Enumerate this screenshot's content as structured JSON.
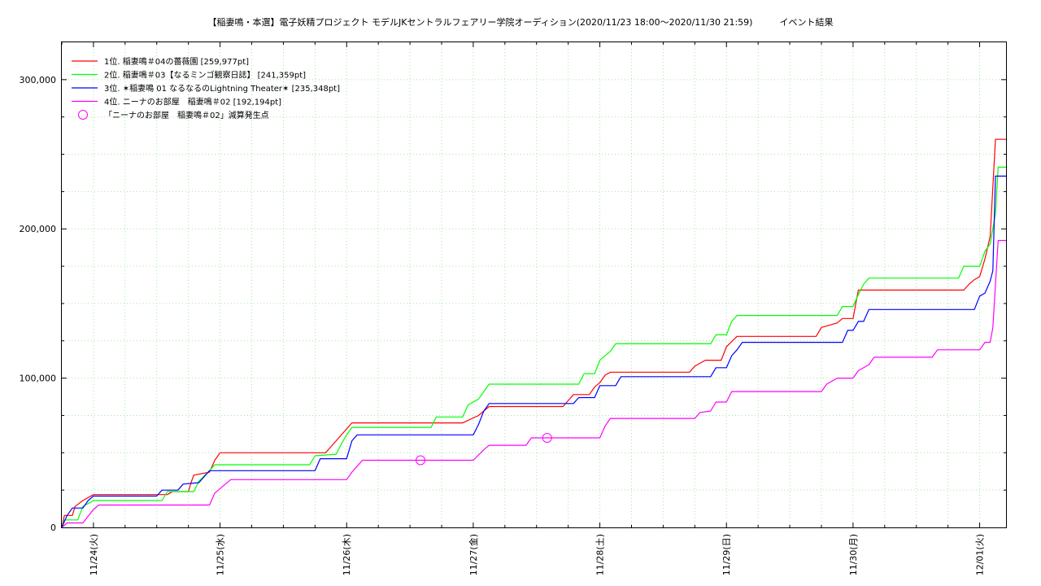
{
  "chart_data": {
    "type": "line",
    "title": "【稲妻鳴・本選】電子妖精プロジェクト モデルJKセントラルフェアリー学院オーディション(2020/11/23 18:00〜2020/11/30 21:59)　　　イベント結果",
    "xlabel": "",
    "ylabel": "",
    "x_ticks": [
      "11/24(火)",
      "11/25(水)",
      "11/26(木)",
      "11/27(金)",
      "11/28(土)",
      "11/29(日)",
      "11/30(月)",
      "12/01(火)"
    ],
    "xlim": [
      "2020-11-23 18:00",
      "2020-12-01 05:00"
    ],
    "ylim": [
      0,
      325000
    ],
    "y_ticks": [
      "0",
      "100,000",
      "200,000",
      "300,000"
    ],
    "y_tick_values": [
      0,
      100000,
      200000,
      300000
    ],
    "grid": true,
    "legend_position": "top-left",
    "series": [
      {
        "name": "1位. 稲妻鳴＃04の薔薇園 [259,977pt]",
        "color": "#ff0000",
        "points": [
          [
            "2020-11-23 18:00",
            0
          ],
          [
            "2020-11-23 18:30",
            8000
          ],
          [
            "2020-11-23 20:00",
            8000
          ],
          [
            "2020-11-23 20:30",
            14000
          ],
          [
            "2020-11-23 22:00",
            18000
          ],
          [
            "2020-11-24 00:00",
            22000
          ],
          [
            "2020-11-24 14:00",
            22000
          ],
          [
            "2020-11-24 15:00",
            24000
          ],
          [
            "2020-11-24 18:00",
            24000
          ],
          [
            "2020-11-24 18:30",
            30000
          ],
          [
            "2020-11-24 19:00",
            35000
          ],
          [
            "2020-11-24 22:00",
            37000
          ],
          [
            "2020-11-24 23:00",
            45000
          ],
          [
            "2020-11-25 00:00",
            50000
          ],
          [
            "2020-11-25 20:00",
            50000
          ],
          [
            "2020-11-25 21:00",
            54000
          ],
          [
            "2020-11-26 00:00",
            66000
          ],
          [
            "2020-11-26 01:00",
            70000
          ],
          [
            "2020-11-26 22:00",
            70000
          ],
          [
            "2020-11-27 01:00",
            75000
          ],
          [
            "2020-11-27 03:00",
            81000
          ],
          [
            "2020-11-27 17:00",
            81000
          ],
          [
            "2020-11-27 18:00",
            85000
          ],
          [
            "2020-11-27 19:00",
            89000
          ],
          [
            "2020-11-27 22:00",
            89000
          ],
          [
            "2020-11-27 23:00",
            94000
          ],
          [
            "2020-11-28 00:00",
            97000
          ],
          [
            "2020-11-28 01:00",
            102000
          ],
          [
            "2020-11-28 02:00",
            104000
          ],
          [
            "2020-11-28 17:00",
            104000
          ],
          [
            "2020-11-28 18:00",
            108000
          ],
          [
            "2020-11-28 20:00",
            112000
          ],
          [
            "2020-11-28 23:00",
            112000
          ],
          [
            "2020-11-29 00:00",
            121000
          ],
          [
            "2020-11-29 02:00",
            128000
          ],
          [
            "2020-11-29 17:00",
            128000
          ],
          [
            "2020-11-29 18:00",
            134000
          ],
          [
            "2020-11-29 21:00",
            137000
          ],
          [
            "2020-11-29 22:00",
            140000
          ],
          [
            "2020-11-30 00:00",
            140000
          ],
          [
            "2020-11-30 01:00",
            159000
          ],
          [
            "2020-11-30 21:00",
            159000
          ],
          [
            "2020-11-30 22:00",
            163000
          ],
          [
            "2020-11-30 23:00",
            166000
          ],
          [
            "2020-12-01 00:00",
            168000
          ],
          [
            "2020-12-01 01:00",
            180000
          ],
          [
            "2020-12-01 02:00",
            195000
          ],
          [
            "2020-12-01 03:00",
            259977
          ],
          [
            "2020-12-01 05:00",
            259977
          ]
        ]
      },
      {
        "name": "2位. 稲妻鳴＃03【なるミンゴ観察日誌】 [241,359pt]",
        "color": "#00ff00",
        "points": [
          [
            "2020-11-23 18:00",
            0
          ],
          [
            "2020-11-23 18:30",
            5000
          ],
          [
            "2020-11-23 21:00",
            5000
          ],
          [
            "2020-11-23 22:00",
            14000
          ],
          [
            "2020-11-24 00:00",
            18000
          ],
          [
            "2020-11-24 13:00",
            18000
          ],
          [
            "2020-11-24 14:00",
            24000
          ],
          [
            "2020-11-24 19:00",
            24000
          ],
          [
            "2020-11-24 20:00",
            31000
          ],
          [
            "2020-11-24 22:00",
            38000
          ],
          [
            "2020-11-24 23:00",
            42000
          ],
          [
            "2020-11-25 17:00",
            42000
          ],
          [
            "2020-11-25 18:00",
            48000
          ],
          [
            "2020-11-25 22:00",
            49000
          ],
          [
            "2020-11-25 23:00",
            56000
          ],
          [
            "2020-11-26 00:00",
            62000
          ],
          [
            "2020-11-26 01:00",
            67000
          ],
          [
            "2020-11-26 16:00",
            67000
          ],
          [
            "2020-11-26 17:00",
            74000
          ],
          [
            "2020-11-26 22:00",
            74000
          ],
          [
            "2020-11-26 23:00",
            82000
          ],
          [
            "2020-11-27 01:00",
            86000
          ],
          [
            "2020-11-27 03:00",
            96000
          ],
          [
            "2020-11-27 16:00",
            96000
          ],
          [
            "2020-11-27 20:00",
            96000
          ],
          [
            "2020-11-27 21:00",
            103000
          ],
          [
            "2020-11-27 23:00",
            103000
          ],
          [
            "2020-11-28 00:00",
            112000
          ],
          [
            "2020-11-28 02:00",
            118000
          ],
          [
            "2020-11-28 03:00",
            123000
          ],
          [
            "2020-11-28 21:00",
            123000
          ],
          [
            "2020-11-28 22:00",
            129000
          ],
          [
            "2020-11-29 00:00",
            129000
          ],
          [
            "2020-11-29 01:00",
            138000
          ],
          [
            "2020-11-29 02:00",
            142000
          ],
          [
            "2020-11-29 21:00",
            142000
          ],
          [
            "2020-11-29 22:00",
            148000
          ],
          [
            "2020-11-30 00:00",
            148000
          ],
          [
            "2020-11-30 01:00",
            156000
          ],
          [
            "2020-11-30 02:00",
            163000
          ],
          [
            "2020-11-30 03:00",
            167000
          ],
          [
            "2020-11-30 20:00",
            167000
          ],
          [
            "2020-11-30 21:00",
            175000
          ],
          [
            "2020-12-01 00:00",
            175000
          ],
          [
            "2020-12-01 01:00",
            185000
          ],
          [
            "2020-12-01 02:00",
            190000
          ],
          [
            "2020-12-01 03:00",
            210000
          ],
          [
            "2020-12-01 03:30",
            241359
          ],
          [
            "2020-12-01 05:00",
            241359
          ]
        ]
      },
      {
        "name": "3位. ✶稲妻鳴 01 なるなるのLightning Theater✶ [235,348pt]",
        "color": "#0000ff",
        "points": [
          [
            "2020-11-23 18:00",
            0
          ],
          [
            "2020-11-23 19:00",
            8000
          ],
          [
            "2020-11-23 20:00",
            13000
          ],
          [
            "2020-11-23 22:00",
            13000
          ],
          [
            "2020-11-23 23:00",
            18000
          ],
          [
            "2020-11-24 00:00",
            21000
          ],
          [
            "2020-11-24 12:00",
            21000
          ],
          [
            "2020-11-24 13:00",
            25000
          ],
          [
            "2020-11-24 16:00",
            25000
          ],
          [
            "2020-11-24 17:00",
            29000
          ],
          [
            "2020-11-24 20:00",
            30000
          ],
          [
            "2020-11-24 21:00",
            34000
          ],
          [
            "2020-11-24 22:00",
            38000
          ],
          [
            "2020-11-25 18:00",
            38000
          ],
          [
            "2020-11-25 19:00",
            46000
          ],
          [
            "2020-11-26 00:00",
            46000
          ],
          [
            "2020-11-26 01:00",
            58000
          ],
          [
            "2020-11-26 02:00",
            62000
          ],
          [
            "2020-11-27 00:00",
            62000
          ],
          [
            "2020-11-27 01:00",
            69000
          ],
          [
            "2020-11-27 02:00",
            78000
          ],
          [
            "2020-11-27 03:00",
            83000
          ],
          [
            "2020-11-27 19:00",
            83000
          ],
          [
            "2020-11-27 20:00",
            87000
          ],
          [
            "2020-11-27 23:00",
            87000
          ],
          [
            "2020-11-28 00:00",
            95000
          ],
          [
            "2020-11-28 03:00",
            95000
          ],
          [
            "2020-11-28 04:00",
            101000
          ],
          [
            "2020-11-28 21:00",
            101000
          ],
          [
            "2020-11-28 22:00",
            107000
          ],
          [
            "2020-11-29 00:00",
            107000
          ],
          [
            "2020-11-29 01:00",
            115000
          ],
          [
            "2020-11-29 02:00",
            119000
          ],
          [
            "2020-11-29 03:00",
            124000
          ],
          [
            "2020-11-29 22:00",
            124000
          ],
          [
            "2020-11-29 23:00",
            132000
          ],
          [
            "2020-11-30 00:00",
            132000
          ],
          [
            "2020-11-30 01:00",
            138000
          ],
          [
            "2020-11-30 02:00",
            138000
          ],
          [
            "2020-11-30 03:00",
            146000
          ],
          [
            "2020-11-30 23:00",
            146000
          ],
          [
            "2020-12-01 00:00",
            155000
          ],
          [
            "2020-12-01 01:00",
            157000
          ],
          [
            "2020-12-01 02:00",
            165000
          ],
          [
            "2020-12-01 02:30",
            172000
          ],
          [
            "2020-12-01 03:00",
            235348
          ],
          [
            "2020-12-01 05:00",
            235348
          ]
        ]
      },
      {
        "name": "4位. ニーナのお部屋　稲妻鳴＃02 [192,194pt]",
        "color": "#ff00ff",
        "points": [
          [
            "2020-11-23 18:00",
            0
          ],
          [
            "2020-11-23 19:00",
            3000
          ],
          [
            "2020-11-23 22:00",
            3000
          ],
          [
            "2020-11-24 00:00",
            12000
          ],
          [
            "2020-11-24 01:00",
            15000
          ],
          [
            "2020-11-24 22:00",
            15000
          ],
          [
            "2020-11-24 23:00",
            23000
          ],
          [
            "2020-11-25 02:00",
            32000
          ],
          [
            "2020-11-26 00:00",
            32000
          ],
          [
            "2020-11-26 01:00",
            37000
          ],
          [
            "2020-11-26 02:00",
            41000
          ],
          [
            "2020-11-26 03:00",
            45000
          ],
          [
            "2020-11-27 00:00",
            45000
          ],
          [
            "2020-11-27 02:00",
            52000
          ],
          [
            "2020-11-27 03:00",
            55000
          ],
          [
            "2020-11-27 10:00",
            55000
          ],
          [
            "2020-11-27 11:00",
            60000
          ],
          [
            "2020-11-28 00:00",
            60000
          ],
          [
            "2020-11-28 01:00",
            68000
          ],
          [
            "2020-11-28 02:00",
            73000
          ],
          [
            "2020-11-28 18:00",
            73000
          ],
          [
            "2020-11-28 19:00",
            77000
          ],
          [
            "2020-11-28 21:00",
            78000
          ],
          [
            "2020-11-28 22:00",
            84000
          ],
          [
            "2020-11-29 00:00",
            84000
          ],
          [
            "2020-11-29 01:00",
            91000
          ],
          [
            "2020-11-29 18:00",
            91000
          ],
          [
            "2020-11-29 19:00",
            96000
          ],
          [
            "2020-11-29 21:00",
            100000
          ],
          [
            "2020-11-30 00:00",
            100000
          ],
          [
            "2020-11-30 01:00",
            105000
          ],
          [
            "2020-11-30 03:00",
            109000
          ],
          [
            "2020-11-30 04:00",
            114000
          ],
          [
            "2020-11-30 15:00",
            114000
          ],
          [
            "2020-11-30 16:00",
            119000
          ],
          [
            "2020-12-01 00:00",
            119000
          ],
          [
            "2020-12-01 01:00",
            124000
          ],
          [
            "2020-12-01 02:00",
            124000
          ],
          [
            "2020-12-01 02:30",
            134000
          ],
          [
            "2020-12-01 03:30",
            192194
          ],
          [
            "2020-12-01 05:00",
            192194
          ]
        ]
      }
    ],
    "markers": {
      "name": "「ニーナのお部屋　稲妻鳴＃02」減算発生点",
      "color": "#ff00ff",
      "points": [
        [
          "2020-11-26 14:00",
          45000
        ],
        [
          "2020-11-27 14:00",
          60000
        ]
      ]
    }
  }
}
